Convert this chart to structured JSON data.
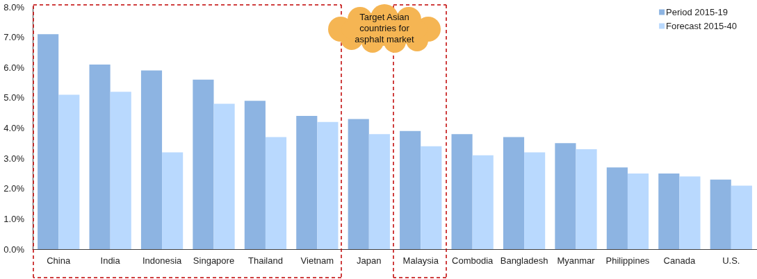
{
  "chart_data": {
    "type": "bar",
    "categories": [
      "China",
      "India",
      "Indonesia",
      "Singapore",
      "Thailand",
      "Vietnam",
      "Japan",
      "Malaysia",
      "Combodia",
      "Bangladesh",
      "Myanmar",
      "Philippines",
      "Canada",
      "U.S."
    ],
    "series": [
      {
        "name": "Period 2015-19",
        "color": "#8db4e2",
        "values": [
          7.1,
          6.1,
          5.9,
          5.6,
          4.9,
          4.4,
          4.3,
          3.9,
          3.8,
          3.7,
          3.5,
          2.7,
          2.5,
          2.3
        ]
      },
      {
        "name": "Forecast 2015-40",
        "color": "#b9d9fe",
        "values": [
          5.1,
          5.2,
          3.2,
          4.8,
          3.7,
          4.2,
          3.8,
          3.4,
          3.1,
          3.2,
          3.3,
          2.5,
          2.4,
          2.1
        ]
      }
    ],
    "ylim": [
      0,
      8
    ],
    "yticks": [
      {
        "value": 0,
        "label": "0.0%"
      },
      {
        "value": 1,
        "label": "1.0%"
      },
      {
        "value": 2,
        "label": "2.0%"
      },
      {
        "value": 3,
        "label": "3.0%"
      },
      {
        "value": 4,
        "label": "4.0%"
      },
      {
        "value": 5,
        "label": "5.0%"
      },
      {
        "value": 6,
        "label": "6.0%"
      },
      {
        "value": 7,
        "label": "7.0%"
      },
      {
        "value": 8,
        "label": "8.0%"
      }
    ],
    "grid": false,
    "legend": "top right",
    "annotations": [
      "Target Asian countries for asphalt market"
    ]
  }
}
